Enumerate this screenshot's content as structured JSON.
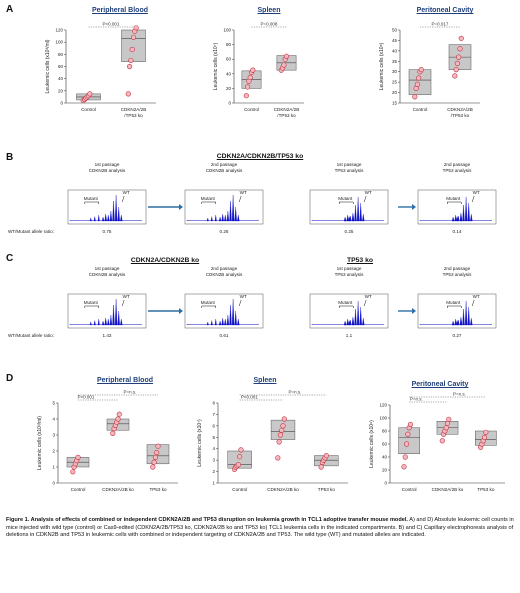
{
  "panels": {
    "A": "A",
    "B": "B",
    "C": "C",
    "D": "D"
  },
  "panelA": [
    {
      "title": "Peripheral Blood",
      "ylabel": "Leukemic cells (x10³/ml)",
      "p": "P<0.001",
      "ylim": [
        0,
        120
      ],
      "yticks": [
        0,
        20,
        40,
        60,
        80,
        100,
        120
      ],
      "categories": [
        "Control",
        "CDKN2A/2B\n/TP53 ko"
      ],
      "groups": [
        {
          "box": [
            5,
            15
          ],
          "median": 10,
          "points": [
            4,
            6,
            8,
            10,
            12,
            15
          ]
        },
        {
          "box": [
            68,
            122
          ],
          "median": 106,
          "points": [
            15,
            60,
            70,
            88,
            108,
            118,
            124
          ]
        }
      ]
    },
    {
      "title": "Spleen",
      "ylabel": "Leukemic cells (x10⁷)",
      "p": "P=0.008",
      "ylim": [
        0,
        100
      ],
      "yticks": [
        0,
        20,
        40,
        60,
        80,
        100
      ],
      "categories": [
        "Control",
        "CDKN2A/2B\n/TP53 ko"
      ],
      "groups": [
        {
          "box": [
            20,
            44
          ],
          "median": 32,
          "points": [
            10,
            22,
            30,
            35,
            42,
            45
          ]
        },
        {
          "box": [
            45,
            65
          ],
          "median": 55,
          "points": [
            45,
            48,
            52,
            60,
            64
          ]
        }
      ]
    },
    {
      "title": "Peritoneal Cavity",
      "ylabel": "Leukemic cells (x10⁶)",
      "p": "P=0.017",
      "ylim": [
        15,
        50
      ],
      "yticks": [
        15,
        20,
        25,
        30,
        35,
        40,
        45,
        50
      ],
      "categories": [
        "Control",
        "CDKN2A/2B\n/TP53 ko"
      ],
      "groups": [
        {
          "box": [
            19,
            31
          ],
          "median": 26,
          "points": [
            18,
            22,
            24,
            27,
            30,
            31
          ]
        },
        {
          "box": [
            31,
            43
          ],
          "median": 37,
          "points": [
            28,
            31,
            34,
            37,
            41,
            46
          ]
        }
      ]
    }
  ],
  "panelB": {
    "title": "CDKN2A/CDKN2B/TP53 ko",
    "plots": [
      {
        "passage": "1st passage\nCDKN2B analysis",
        "ratio": "0.75"
      },
      {
        "passage": "2nd passage\nCDKN2B analysis",
        "ratio": "0.26"
      },
      {
        "passage": "1st passage\nTP53 analysis",
        "ratio": "0.25"
      },
      {
        "passage": "2nd passage\nTP53 analysis",
        "ratio": "0.14"
      }
    ],
    "ratio_label": "WT/Mutant allele ratio:"
  },
  "panelC": {
    "title_left": "CDKN2A/CDKN2B ko",
    "title_right": "TP53 ko",
    "plots": [
      {
        "passage": "1st passage\nCDKN2B analysis",
        "ratio": "1.43"
      },
      {
        "passage": "2nd passage\nCDKN2B analysis",
        "ratio": "0.61"
      },
      {
        "passage": "1st passage\nTP53 analysis",
        "ratio": "1.1"
      },
      {
        "passage": "2nd passage\nTP53 analysis",
        "ratio": "0.27"
      }
    ],
    "ratio_label": "WT/Mutant allele ratio:"
  },
  "electro_labels": {
    "wt": "WT",
    "mutant": "Mutant"
  },
  "panelD": [
    {
      "title": "Peripheral Blood",
      "ylabel": "Leukemic cells (x10³/ml)",
      "p1": "P=n.s.",
      "p2": "P<0.001",
      "ylim": [
        0,
        5
      ],
      "yticks": [
        0,
        1,
        2,
        3,
        4,
        5
      ],
      "categories": [
        "Control",
        "CDKN2A/2B ko",
        "TP53 ko"
      ],
      "groups": [
        {
          "box": [
            1.0,
            1.6
          ],
          "median": 1.3,
          "points": [
            0.7,
            1.0,
            1.2,
            1.4,
            1.6
          ]
        },
        {
          "box": [
            3.3,
            4.0
          ],
          "median": 3.7,
          "points": [
            3.1,
            3.4,
            3.6,
            3.8,
            4.0,
            4.3
          ]
        },
        {
          "box": [
            1.2,
            2.4
          ],
          "median": 1.7,
          "points": [
            1.0,
            1.3,
            1.6,
            1.9,
            2.3
          ]
        }
      ]
    },
    {
      "title": "Spleen",
      "ylabel": "Leukemic cells (x10⁷)",
      "p1": "P=n.s.",
      "p2": "P<0.001",
      "ylim": [
        1,
        8
      ],
      "yticks": [
        1,
        2,
        3,
        4,
        5,
        6,
        7,
        8
      ],
      "categories": [
        "Control",
        "CDKN2A/2B ko",
        "TP53 ko"
      ],
      "groups": [
        {
          "box": [
            2.3,
            3.8
          ],
          "median": 2.6,
          "points": [
            2.2,
            2.4,
            2.5,
            2.6,
            3.3,
            3.9
          ]
        },
        {
          "box": [
            4.8,
            6.5
          ],
          "median": 5.5,
          "points": [
            3.2,
            4.6,
            5.2,
            5.6,
            6.0,
            6.6
          ]
        },
        {
          "box": [
            2.5,
            3.4
          ],
          "median": 3.0,
          "points": [
            2.4,
            2.8,
            3.0,
            3.2,
            3.4
          ]
        }
      ]
    },
    {
      "title": "Peritoneal Cavity",
      "ylabel": "Leukemic cells (x10⁶)",
      "p1": "P=n.s.",
      "p2": "P=n.s.",
      "ylim": [
        0,
        120
      ],
      "yticks": [
        0,
        20,
        40,
        60,
        80,
        100,
        120
      ],
      "categories": [
        "Control",
        "CDKN2A/2B ko",
        "TP53 ko"
      ],
      "groups": [
        {
          "box": [
            45,
            85
          ],
          "median": 70,
          "points": [
            25,
            40,
            60,
            75,
            85,
            90
          ]
        },
        {
          "box": [
            75,
            95
          ],
          "median": 85,
          "points": [
            65,
            75,
            80,
            85,
            92,
            98
          ]
        },
        {
          "box": [
            58,
            80
          ],
          "median": 67,
          "points": [
            55,
            60,
            65,
            70,
            78
          ]
        }
      ]
    }
  ],
  "caption": {
    "bold": "Figure 1. Analysis of effects of combined or independent CDKN2A/2B and TP53 disruption on leukemia growth in TCL1 adoptive transfer mouse model.",
    "text": " A) and D) Absolute leukemic cell counts in mice injected with wild type (control) or Cas9-edited (CDKN2A/2B/TP53 ko, CDKN2A/2B ko and TP53 ko) TCL1 leukemia cells in the indicated compartments. B) and C) Capillary electrophoresis analysis of deletions in CDKN2B and TP53 in leukemic cells with combined or independent targeting of CDKN2A/2B and TP53. The wild type (WT) and mutated alleles are indicated."
  },
  "colors": {
    "title": "#1f3f7a",
    "box": "#c8c8c8",
    "point_fill": "#f3b8bf",
    "point_stroke": "#c0303f",
    "peak": "#1010c8",
    "arrow": "#2e6ea6"
  }
}
